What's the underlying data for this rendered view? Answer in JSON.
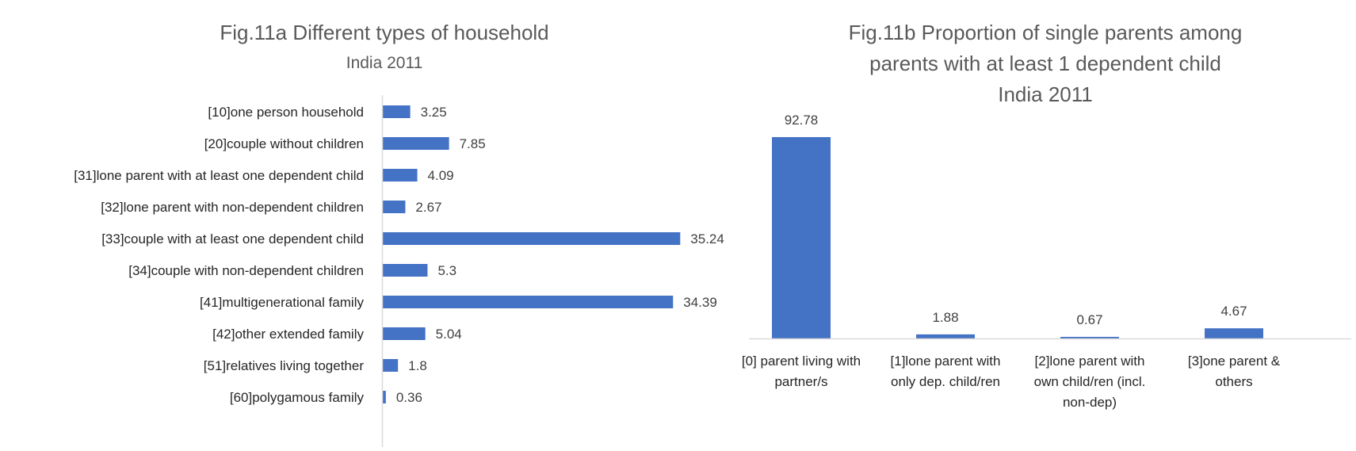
{
  "chart_data": [
    {
      "type": "bar",
      "orientation": "horizontal",
      "title": "Fig.11a Different types of household",
      "subtitle": "India 2011",
      "categories": [
        "[10]one person household",
        "[20]couple without children",
        "[31]lone parent with at least one dependent child",
        "[32]lone parent with non-dependent children",
        "[33]couple with at least one dependent child",
        "[34]couple with non-dependent children",
        "[41]multigenerational family",
        "[42]other extended family",
        "[51]relatives living together",
        "[60]polygamous family"
      ],
      "values": [
        3.25,
        7.85,
        4.09,
        2.67,
        35.24,
        5.3,
        34.39,
        5.04,
        1.8,
        0.36
      ],
      "value_labels": [
        "3.25",
        "7.85",
        "4.09",
        "2.67",
        "35.24",
        "5.3",
        "34.39",
        "5.04",
        "1.8",
        "0.36"
      ],
      "xlim": [
        0,
        36
      ],
      "grid": false,
      "bar_color": "#4472C4"
    },
    {
      "type": "bar",
      "orientation": "vertical",
      "title_lines": [
        "Fig.11b Proportion of single parents among",
        "parents with at least 1 dependent child",
        "India 2011"
      ],
      "categories": [
        [
          "[0] parent living with",
          "partner/s"
        ],
        [
          "[1]lone parent with",
          "only dep. child/ren"
        ],
        [
          "[2]lone parent with",
          "own child/ren (incl.",
          "non-dep)"
        ],
        [
          "[3]one parent &",
          "others"
        ]
      ],
      "values": [
        92.78,
        1.88,
        0.67,
        4.67
      ],
      "value_labels": [
        "92.78",
        "1.88",
        "0.67",
        "4.67"
      ],
      "ylim": [
        0,
        100
      ],
      "grid": false,
      "bar_color": "#4472C4"
    }
  ],
  "colors": {
    "bar": "#4472C4",
    "axis": "#D9D9D9",
    "title": "#595959"
  }
}
